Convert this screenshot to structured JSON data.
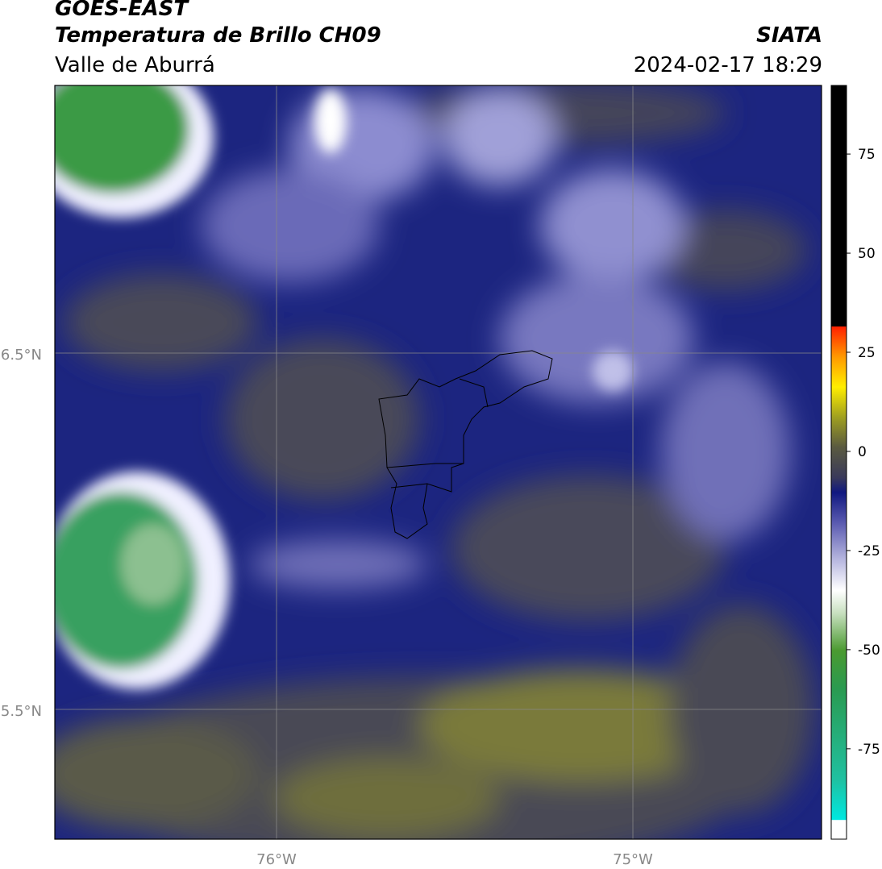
{
  "header": {
    "title": "GOES-EAST",
    "subtitle": "Temperatura de Brillo CH09",
    "region": "Valle de Aburrá",
    "source": "SIATA",
    "datetime": "2024-02-17 18:29"
  },
  "map": {
    "lat_labels": [
      "6.5°N",
      "5.5°N"
    ],
    "lon_labels": [
      "76°W",
      "75°W"
    ]
  },
  "colorbar": {
    "range": [
      -97.8,
      92.3
    ],
    "ticks": [
      75,
      50,
      25,
      0,
      -25,
      -50,
      -75
    ]
  }
}
